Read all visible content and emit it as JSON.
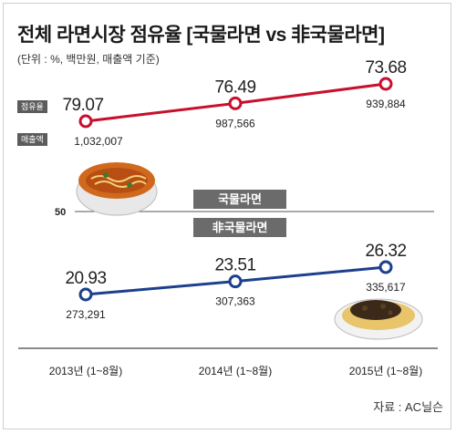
{
  "title": "전체 라면시장 점유율 [국물라면 vs 非국물라면]",
  "subtitle": "(단위 : %, 백만원, 매출액 기준)",
  "badges": {
    "share": "점유율",
    "sales": "매출액"
  },
  "bands": {
    "domestic": "국물라면",
    "non": "非국물라면"
  },
  "reference_label": "50",
  "source": "자료 : AC닐슨",
  "colors": {
    "domestic": "#c8102e",
    "non": "#1d3f8e"
  },
  "chart_data": {
    "type": "line",
    "title": "전체 라면시장 점유율 [국물라면 vs 非국물라면]",
    "categories": [
      "2013년 (1~8월)",
      "2014년 (1~8월)",
      "2015년 (1~8월)"
    ],
    "reference_line": 50,
    "series": [
      {
        "name": "국물라면",
        "share_labels": [
          "79.07",
          "76.49",
          "73.68"
        ],
        "share": [
          79.07,
          76.49,
          73.68
        ],
        "sales_labels": [
          "1,032,007",
          "987,566",
          "939,884"
        ],
        "sales": [
          1032007,
          987566,
          939884
        ]
      },
      {
        "name": "非국물라면",
        "share_labels": [
          "20.93",
          "23.51",
          "26.32"
        ],
        "share": [
          20.93,
          23.51,
          26.32
        ],
        "sales_labels": [
          "273,291",
          "307,363",
          "335,617"
        ],
        "sales": [
          273291,
          307363,
          335617
        ]
      }
    ]
  }
}
